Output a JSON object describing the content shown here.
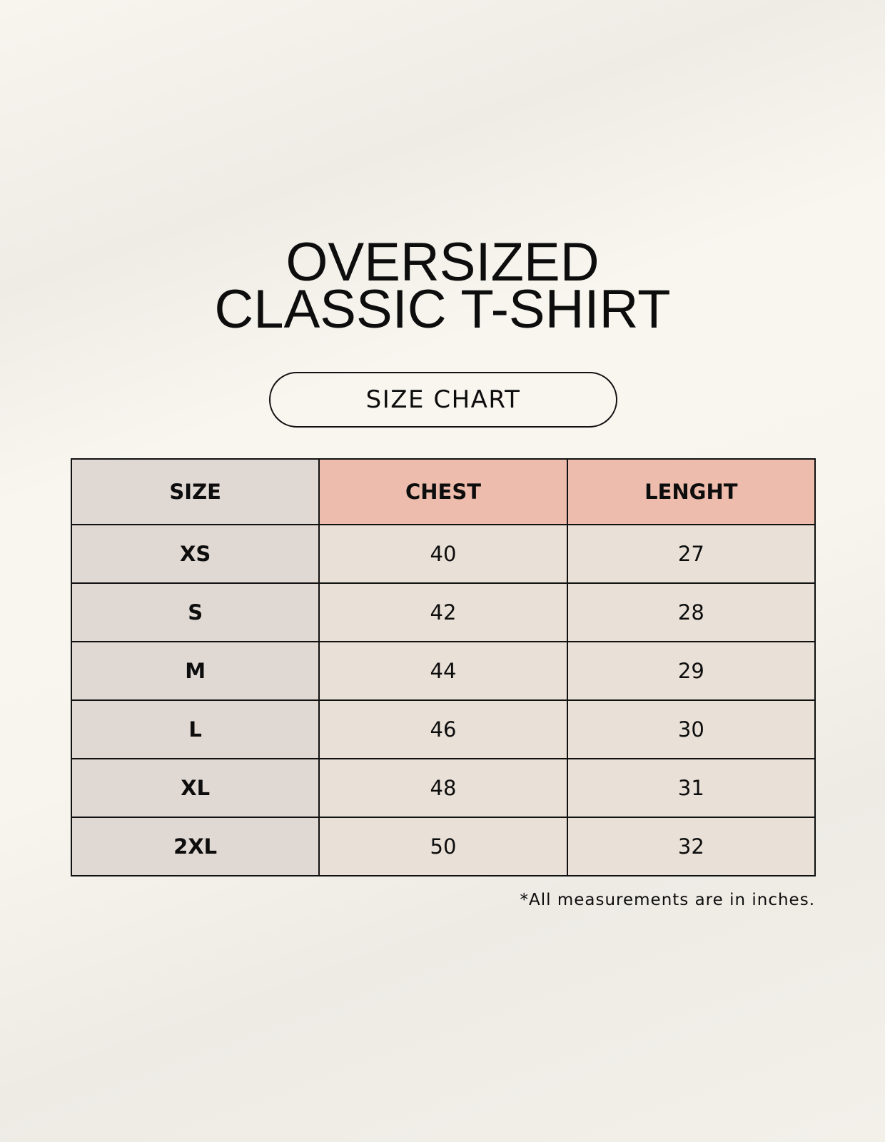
{
  "title": {
    "line1": "OVERSIZED",
    "line2": "CLASSIC T-SHIRT"
  },
  "badge": "SIZE CHART",
  "table": {
    "headers": [
      "SIZE",
      "CHEST",
      "LENGHT"
    ],
    "rows": [
      [
        "XS",
        "40",
        "27"
      ],
      [
        "S",
        "42",
        "28"
      ],
      [
        "M",
        "44",
        "29"
      ],
      [
        "L",
        "46",
        "30"
      ],
      [
        "XL",
        "48",
        "31"
      ],
      [
        "2XL",
        "50",
        "32"
      ]
    ]
  },
  "footnote": "*All measurements are in inches.",
  "colors": {
    "header_accent": "#edbcad",
    "size_column": "#e0d8d2",
    "cell": "#e9e1d7",
    "background": "#f8f5ef"
  }
}
